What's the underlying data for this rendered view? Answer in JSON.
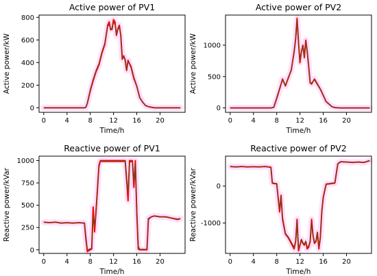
{
  "colors": {
    "spread": "#ff00ff",
    "spread_opacity": 0.12,
    "line_red": "#ff0000",
    "line_main": "#8b3a1a",
    "frame": "#000000"
  },
  "chart_data": [
    {
      "type": "line",
      "title": "Active power of PV1",
      "xlabel": "Time/h",
      "ylabel": "Active power/kW",
      "xlim": [
        -0.8,
        24.3
      ],
      "ylim": [
        -40,
        820
      ],
      "xticks": [
        0,
        4,
        8,
        12,
        16,
        20
      ],
      "yticks": [
        0,
        200,
        400,
        600,
        800
      ],
      "grid": false,
      "legend": "none",
      "series": [
        {
          "x": [
            0,
            0.5,
            1,
            1.5,
            2,
            2.5,
            3,
            3.5,
            4,
            4.5,
            5,
            5.5,
            6,
            6.5,
            7,
            7.25,
            7.5,
            8,
            8.5,
            9,
            9.5,
            10,
            10.5,
            11,
            11.25,
            11.5,
            11.75,
            12,
            12.25,
            12.5,
            12.75,
            13,
            13.25,
            13.5,
            13.75,
            14,
            14.25,
            14.5,
            15,
            15.5,
            16,
            16.5,
            17,
            17.5,
            18,
            18.5,
            19,
            19.5,
            20,
            21,
            22,
            23,
            23.5
          ],
          "values": [
            0,
            0,
            0,
            0,
            0,
            0,
            0,
            0,
            0,
            0,
            0,
            0,
            0,
            0,
            0,
            5,
            40,
            150,
            240,
            320,
            380,
            480,
            560,
            730,
            760,
            690,
            700,
            780,
            760,
            640,
            700,
            730,
            640,
            430,
            460,
            420,
            330,
            420,
            360,
            260,
            190,
            90,
            50,
            20,
            10,
            5,
            0,
            0,
            0,
            0,
            0,
            0,
            0
          ]
        },
        {
          "x": [
            0,
            0.5,
            1,
            1.5,
            2,
            2.5,
            3,
            3.5,
            4,
            4.5,
            5,
            5.5,
            6,
            6.5,
            7,
            7.25,
            7.5,
            8,
            8.5,
            9,
            9.5,
            10,
            10.5,
            11,
            11.25,
            11.5,
            11.75,
            12,
            12.25,
            12.5,
            12.75,
            13,
            13.25,
            13.5,
            13.75,
            14,
            14.25,
            14.5,
            15,
            15.5,
            16,
            16.5,
            17,
            17.5,
            18,
            18.5,
            19,
            19.5,
            20,
            21,
            22,
            23,
            23.5
          ],
          "values": [
            0,
            0,
            0,
            0,
            0,
            0,
            0,
            0,
            0,
            0,
            0,
            0,
            0,
            0,
            0,
            5,
            40,
            160,
            250,
            330,
            390,
            490,
            570,
            720,
            740,
            700,
            690,
            760,
            740,
            650,
            690,
            720,
            650,
            440,
            450,
            430,
            340,
            410,
            370,
            270,
            190,
            90,
            50,
            20,
            10,
            5,
            0,
            0,
            0,
            0,
            0,
            0,
            0
          ]
        }
      ]
    },
    {
      "type": "line",
      "title": "Active power of PV2",
      "xlabel": "Time/h",
      "ylabel": "Active power/kW",
      "xlim": [
        -0.8,
        24.3
      ],
      "ylim": [
        -70,
        1480
      ],
      "xticks": [
        0,
        4,
        8,
        12,
        16,
        20
      ],
      "yticks": [
        0,
        500,
        1000
      ],
      "grid": false,
      "legend": "none",
      "series": [
        {
          "x": [
            0,
            0.5,
            1,
            1.5,
            2,
            2.5,
            3,
            3.5,
            4,
            4.5,
            5,
            5.5,
            6,
            6.5,
            7,
            7.5,
            8,
            8.5,
            9,
            9.5,
            10,
            10.5,
            11,
            11.25,
            11.5,
            11.75,
            12,
            12.25,
            12.5,
            12.75,
            13,
            13.25,
            13.5,
            13.75,
            14,
            14.5,
            15,
            15.5,
            16,
            16.5,
            17,
            17.5,
            18,
            19,
            20,
            21,
            22,
            23,
            24
          ],
          "values": [
            0,
            0,
            0,
            0,
            0,
            0,
            0,
            0,
            0,
            0,
            0,
            0,
            0,
            0,
            0,
            10,
            150,
            300,
            460,
            350,
            480,
            600,
            900,
            1100,
            1430,
            1050,
            720,
            900,
            1000,
            800,
            1080,
            900,
            650,
            400,
            380,
            460,
            380,
            300,
            200,
            100,
            60,
            20,
            5,
            0,
            0,
            0,
            0,
            0,
            0
          ]
        },
        {
          "x": [
            0,
            0.5,
            1,
            1.5,
            2,
            2.5,
            3,
            3.5,
            4,
            4.5,
            5,
            5.5,
            6,
            6.5,
            7,
            7.5,
            8,
            8.5,
            9,
            9.5,
            10,
            10.5,
            11,
            11.25,
            11.5,
            11.75,
            12,
            12.25,
            12.5,
            12.75,
            13,
            13.25,
            13.5,
            13.75,
            14,
            14.5,
            15,
            15.5,
            16,
            16.5,
            17,
            17.5,
            18,
            19,
            20,
            21,
            22,
            23,
            24
          ],
          "values": [
            0,
            0,
            0,
            0,
            0,
            0,
            0,
            0,
            0,
            0,
            0,
            0,
            0,
            0,
            0,
            10,
            160,
            310,
            450,
            360,
            470,
            610,
            880,
            1090,
            1410,
            1040,
            730,
            890,
            990,
            810,
            1060,
            890,
            660,
            410,
            390,
            450,
            370,
            300,
            200,
            100,
            60,
            20,
            5,
            0,
            0,
            0,
            0,
            0,
            0
          ]
        }
      ]
    },
    {
      "type": "line",
      "title": "Reactive power of PV1",
      "xlabel": "Time/h",
      "ylabel": "Reactive power/kVar",
      "xlim": [
        -0.8,
        24.3
      ],
      "ylim": [
        -40,
        1050
      ],
      "xticks": [
        0,
        4,
        8,
        12,
        16,
        20
      ],
      "yticks": [
        0,
        250,
        500,
        750,
        1000
      ],
      "grid": false,
      "legend": "none",
      "series": [
        {
          "x": [
            0,
            1,
            2,
            3,
            4,
            5,
            6,
            7,
            7.2,
            7.5,
            8,
            8.25,
            8.5,
            8.75,
            9,
            9.5,
            9.75,
            10,
            11,
            12,
            13,
            14,
            14.25,
            14.5,
            14.75,
            15,
            15.25,
            15.5,
            15.75,
            16,
            16.25,
            16.5,
            17,
            17.5,
            17.75,
            18,
            18.5,
            19,
            20,
            21,
            22,
            23,
            23.5
          ],
          "values": [
            310,
            305,
            310,
            300,
            305,
            300,
            305,
            300,
            150,
            -20,
            0,
            10,
            480,
            200,
            450,
            950,
            1000,
            1000,
            1000,
            1000,
            1000,
            1000,
            800,
            550,
            1000,
            1000,
            1000,
            700,
            1000,
            400,
            10,
            0,
            0,
            0,
            0,
            350,
            370,
            380,
            370,
            370,
            355,
            340,
            350
          ]
        },
        {
          "x": [
            0,
            1,
            2,
            3,
            4,
            5,
            6,
            7,
            7.2,
            7.5,
            8,
            8.25,
            8.5,
            8.75,
            9,
            9.5,
            9.75,
            10,
            11,
            12,
            13,
            14,
            14.25,
            14.5,
            14.75,
            15,
            15.25,
            15.5,
            15.75,
            16,
            16.25,
            16.5,
            17,
            17.5,
            17.75,
            18,
            18.5,
            19,
            20,
            21,
            22,
            23,
            23.5
          ],
          "values": [
            310,
            305,
            310,
            300,
            305,
            300,
            305,
            300,
            180,
            0,
            10,
            20,
            380,
            260,
            420,
            930,
            990,
            990,
            990,
            990,
            990,
            990,
            760,
            640,
            980,
            990,
            985,
            760,
            970,
            440,
            40,
            5,
            5,
            5,
            5,
            340,
            370,
            380,
            370,
            370,
            355,
            345,
            350
          ]
        }
      ]
    },
    {
      "type": "line",
      "title": "Reactive power of PV2",
      "xlabel": "Time/h",
      "ylabel": "Reactive power/kVar",
      "xlim": [
        -0.8,
        24.3
      ],
      "ylim": [
        -1820,
        810
      ],
      "xticks": [
        0,
        4,
        8,
        12,
        16,
        20
      ],
      "yticks": [
        -1000,
        0
      ],
      "grid": false,
      "legend": "none",
      "series": [
        {
          "x": [
            0,
            1,
            2,
            3,
            4,
            5,
            6,
            7,
            7.25,
            7.5,
            8,
            8.5,
            8.75,
            9,
            9.5,
            10,
            10.5,
            11,
            11.25,
            11.5,
            11.75,
            12,
            12.25,
            12.5,
            12.75,
            13,
            13.25,
            13.5,
            13.75,
            14,
            14.25,
            14.5,
            14.75,
            15,
            15.25,
            15.5,
            15.75,
            16,
            16.5,
            17,
            17.5,
            18,
            18.5,
            19,
            20,
            21,
            22,
            23,
            24
          ],
          "values": [
            530,
            520,
            530,
            520,
            525,
            520,
            530,
            510,
            80,
            70,
            60,
            -700,
            -250,
            -900,
            -1300,
            -1400,
            -1550,
            -1700,
            -1500,
            -900,
            -1750,
            -1600,
            -1450,
            -1550,
            -1600,
            -1500,
            -1700,
            -1650,
            -1500,
            -900,
            -1350,
            -1550,
            -1500,
            -1250,
            -1700,
            -1400,
            -700,
            -300,
            50,
            60,
            70,
            80,
            600,
            660,
            650,
            640,
            650,
            640,
            690
          ]
        },
        {
          "x": [
            0,
            1,
            2,
            3,
            4,
            5,
            6,
            7,
            7.25,
            7.5,
            8,
            8.5,
            8.75,
            9,
            9.5,
            10,
            10.5,
            11,
            11.25,
            11.5,
            11.75,
            12,
            12.25,
            12.5,
            12.75,
            13,
            13.25,
            13.5,
            13.75,
            14,
            14.25,
            14.5,
            14.75,
            15,
            15.25,
            15.5,
            15.75,
            16,
            16.5,
            17,
            17.5,
            18,
            18.5,
            19,
            20,
            21,
            22,
            23,
            24
          ],
          "values": [
            530,
            520,
            530,
            520,
            525,
            520,
            530,
            510,
            90,
            80,
            70,
            -650,
            -300,
            -850,
            -1280,
            -1380,
            -1520,
            -1660,
            -1480,
            -950,
            -1700,
            -1580,
            -1440,
            -1530,
            -1580,
            -1490,
            -1660,
            -1620,
            -1480,
            -950,
            -1330,
            -1520,
            -1480,
            -1270,
            -1660,
            -1380,
            -720,
            -320,
            60,
            70,
            80,
            90,
            610,
            660,
            650,
            640,
            650,
            640,
            690
          ]
        }
      ]
    }
  ]
}
